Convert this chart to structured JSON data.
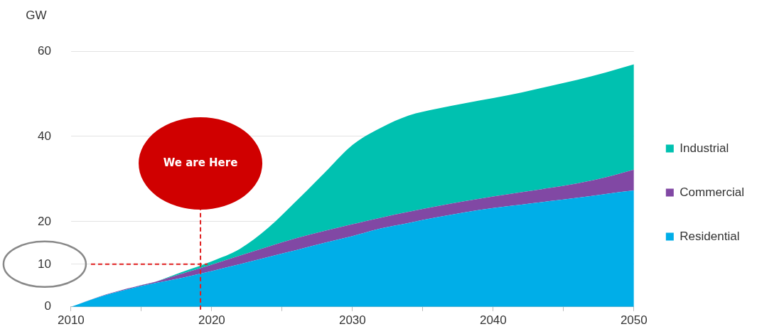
{
  "chart_data": {
    "type": "area",
    "stacked": true,
    "ylabel": "GW",
    "x": [
      2010,
      2012,
      2014,
      2016,
      2018,
      2020,
      2022,
      2024,
      2026,
      2028,
      2030,
      2032,
      2034,
      2036,
      2038,
      2040,
      2042,
      2044,
      2046,
      2048,
      2050
    ],
    "series": [
      {
        "name": "Residential",
        "color": "#00aee8",
        "values": [
          0,
          2.3,
          4.1,
          5.6,
          6.9,
          8.4,
          10,
          11.7,
          13.3,
          15,
          16.6,
          18.4,
          19.7,
          21,
          22.2,
          23.2,
          24,
          24.8,
          25.6,
          26.5,
          27.3
        ]
      },
      {
        "name": "Commercial",
        "color": "#8148a4",
        "values": [
          0,
          0.1,
          0.2,
          0.3,
          1.0,
          1.5,
          2.0,
          2.4,
          2.8,
          2.8,
          2.8,
          2.5,
          2.6,
          2.6,
          2.6,
          2.7,
          2.9,
          3.1,
          3.4,
          3.9,
          4.9
        ]
      },
      {
        "name": "Industrial",
        "color": "#00c1b0",
        "values": [
          0,
          0,
          0,
          0,
          0.4,
          0.8,
          1.6,
          4.4,
          8.7,
          13.6,
          18.6,
          21.1,
          22.6,
          22.9,
          23,
          23.1,
          23.4,
          23.9,
          24.3,
          24.6,
          24.7
        ]
      }
    ],
    "xlim": [
      2010,
      2050
    ],
    "xticks": [
      2010,
      {
        "value": 2015,
        "label": null
      },
      2020,
      {
        "value": 2025,
        "label": null
      },
      2030,
      {
        "value": 2035,
        "label": null
      },
      2040,
      {
        "value": 2045,
        "label": null
      },
      2050
    ],
    "ylim": [
      0,
      60
    ],
    "yticks": [
      0,
      10,
      20,
      40,
      60
    ],
    "grid": "y",
    "legend": "right",
    "ref_lines": [
      {
        "axis": "x",
        "value": 2019.2,
        "label": "We are Here",
        "color": "#e02020",
        "line_style": "dashed"
      },
      {
        "axis": "y",
        "value": 10,
        "color": "#e02020",
        "line_style": "dashed"
      }
    ]
  }
}
